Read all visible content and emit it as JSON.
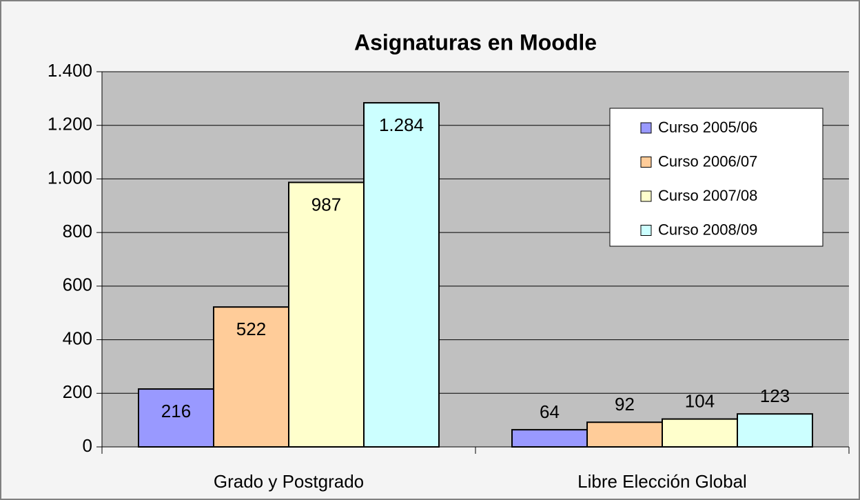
{
  "chart_data": {
    "type": "bar",
    "title": "Asignaturas en Moodle",
    "categories": [
      "Grado y Postgrado",
      "Libre Elección Global"
    ],
    "series": [
      {
        "name": "Curso 2005/06",
        "color": "#9999ff",
        "values": [
          216,
          64
        ]
      },
      {
        "name": "Curso 2006/07",
        "color": "#ffcc99",
        "values": [
          522,
          92
        ]
      },
      {
        "name": "Curso 2007/08",
        "color": "#ffffcc",
        "values": [
          987,
          104
        ]
      },
      {
        "name": "Curso 2008/09",
        "color": "#ccffff",
        "values": [
          1284,
          123
        ],
        "value_labels": [
          "1.284",
          "123"
        ]
      }
    ],
    "ylim": [
      0,
      1400
    ],
    "yticks": [
      0,
      200,
      400,
      600,
      800,
      {
        "value": 1000,
        "label": "1.000"
      },
      {
        "value": 1200,
        "label": "1.200"
      },
      {
        "value": 1400,
        "label": "1.400"
      }
    ],
    "grid": true,
    "legend": "upper right"
  }
}
